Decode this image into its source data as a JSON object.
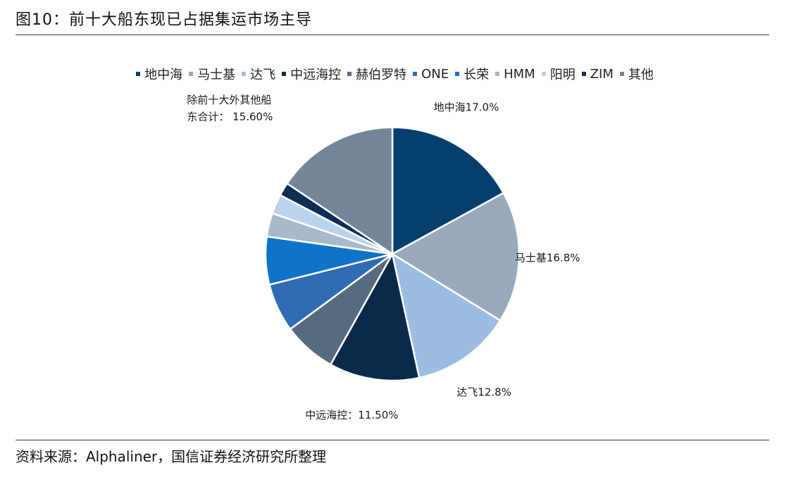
{
  "figure": {
    "title": "图10：前十大船东现已占据集运市场主导",
    "source": "资料来源：Alphaliner，国信证券经济研究所整理"
  },
  "chart_data": {
    "type": "pie",
    "title": "",
    "legend_position": "top",
    "slices": [
      {
        "name": "地中海",
        "value": 17.0,
        "color": "#063e6e"
      },
      {
        "name": "马士基",
        "value": 16.8,
        "color": "#9aaabd"
      },
      {
        "name": "达飞",
        "value": 12.8,
        "color": "#9cbde2"
      },
      {
        "name": "中远海控",
        "value": 11.5,
        "color": "#0b2a4a"
      },
      {
        "name": "赫伯罗特",
        "value": 6.8,
        "color": "#566a80"
      },
      {
        "name": "ONE",
        "value": 6.2,
        "color": "#2f6cb3"
      },
      {
        "name": "长荣",
        "value": 6.1,
        "color": "#0e74c9"
      },
      {
        "name": "HMM",
        "value": 3.0,
        "color": "#a9b9c9"
      },
      {
        "name": "阳明",
        "value": 2.5,
        "color": "#bcd3ee"
      },
      {
        "name": "ZIM",
        "value": 1.7,
        "color": "#0d2e55"
      },
      {
        "name": "其他",
        "value": 15.6,
        "color": "#76869a"
      }
    ],
    "data_labels": [
      {
        "slice": "地中海",
        "text": "地中海17.0%"
      },
      {
        "slice": "马士基",
        "text": "马士基16.8%"
      },
      {
        "slice": "达飞",
        "text": "达飞12.8%"
      },
      {
        "slice": "中远海控",
        "text": "中远海控：11.50%"
      },
      {
        "slice": "其他",
        "line1": "除前十大外其他船",
        "line2": "东合计：  15.60%"
      }
    ]
  }
}
